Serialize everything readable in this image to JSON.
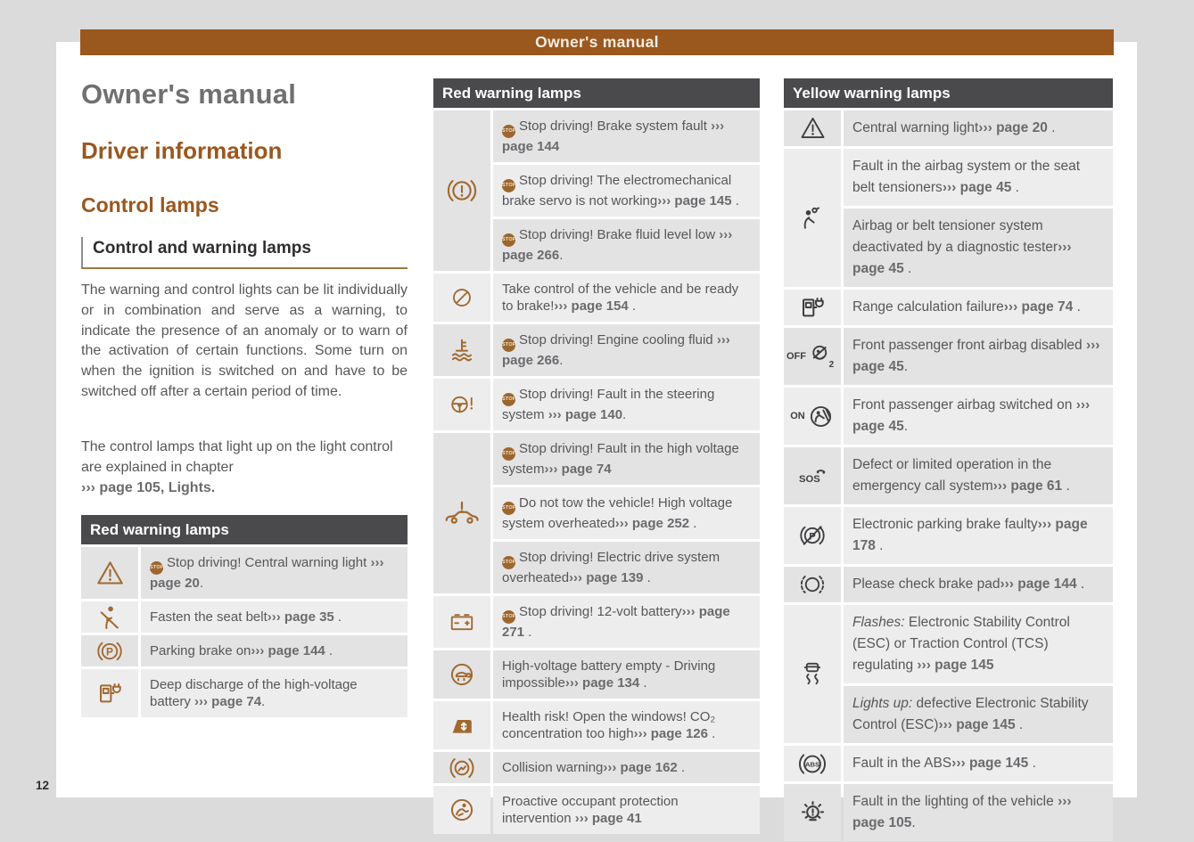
{
  "top_bar": {
    "title": "Owner's manual"
  },
  "page_number": "12",
  "stop_badge_text": "STOP",
  "colors": {
    "background": "#dbdbdc",
    "page": "#ffffff",
    "accent_brown": "#9a571e",
    "bar_text": "#f2ecdf",
    "table_header_bg": "#4a4a4c",
    "table_header_text": "#ffffff",
    "row_dark": "#e3e3e4",
    "row_light": "#ededee",
    "body_text": "#57575a",
    "heading_dark": "#2e2e30",
    "title_grey": "#707072",
    "red_lamp_icon": "#a1692f",
    "yellow_lamp_icon": "#3f3f41",
    "stop_badge_bg": "#9c672f",
    "rule_gold": "#9a7a42",
    "reference_text": "#6b6b6e"
  },
  "left": {
    "title": "Owner's manual",
    "heading1": "Driver information",
    "heading2": "Control lamps",
    "section_heading": "Control and warning lamps",
    "para1": "The warning and control lights can be lit individually or in combination and serve as a warning, to indicate the presence of an anomaly or to warn of the activation of certain functions. Some turn on when the ignition is switched on and have to be switched off after a certain period of time.",
    "para2_text": "The control lamps that light up on the light control are explained in chapter",
    "para2_link": "››› page 105, Lights."
  },
  "tables": [
    {
      "title": "Red warning lamps",
      "icon_color": "#a1692f",
      "rows": [
        {
          "icon": "warning-triangle-icon",
          "stop": true,
          "text": "Stop driving! Central warning light ",
          "link": "››› page 20",
          "suffix": "."
        },
        {
          "icon": "seat-belt-icon",
          "text": "Fasten the seat belt",
          "link": "››› page 35",
          "suffix": " ."
        },
        {
          "icon": "parking-brake-icon",
          "text": "Parking brake on",
          "link": "››› page 144",
          "suffix": " ."
        },
        {
          "icon": "hv-battery-discharge-icon",
          "text": "Deep discharge of the high-voltage battery ",
          "link": "››› page 74",
          "suffix": "."
        }
      ]
    },
    {
      "title": "Red warning lamps",
      "icon_color": "#a1692f",
      "rows": [
        {
          "icon": "brake-system-warning-icon",
          "span": 3,
          "stop": true,
          "text": "Stop driving! Brake system fault ",
          "link": "››› page 144",
          "suffix": ""
        },
        {
          "stop": true,
          "text": "Stop driving! The electromechanical brake servo is not working",
          "link": "››› page 145",
          "suffix": " ."
        },
        {
          "stop": true,
          "text": "Stop driving! Brake fluid level low ",
          "link": "››› page 266",
          "suffix": "."
        },
        {
          "icon": "acc-takeover-icon",
          "text": "Take control of the vehicle and be ready to brake!",
          "link": "››› page 154",
          "suffix": " ."
        },
        {
          "icon": "engine-coolant-icon",
          "stop": true,
          "text": "Stop driving! Engine cooling fluid ",
          "link": "››› page 266",
          "suffix": "."
        },
        {
          "icon": "steering-fault-icon",
          "stop": true,
          "text": "Stop driving! Fault in the steering system ",
          "link": "››› page 140",
          "suffix": "."
        },
        {
          "icon": "hv-system-warning-icon",
          "span": 3,
          "stop": true,
          "text": "Stop driving! Fault in the high voltage system",
          "link": "››› page 74",
          "suffix": ""
        },
        {
          "stop": true,
          "text": "Do not tow the vehicle! High voltage system overheated",
          "link": "››› page 252",
          "suffix": " ."
        },
        {
          "stop": true,
          "text": "Stop driving! Electric drive system overheated",
          "link": "››› page 139",
          "suffix": " ."
        },
        {
          "icon": "battery-12v-icon",
          "stop": true,
          "text": "Stop driving! 12-volt battery",
          "link": "››› page 271",
          "suffix": " ."
        },
        {
          "icon": "turtle-icon",
          "text": "High-voltage battery empty - Driving impossible",
          "link": "››› page 134",
          "suffix": " ."
        },
        {
          "icon": "co2-window-icon",
          "text": "Health risk! Open the windows! CO₂ concentration too high",
          "link": "››› page 126",
          "suffix": " ."
        },
        {
          "icon": "collision-warning-icon",
          "text": "Collision warning",
          "link": "››› page 162",
          "suffix": " ."
        },
        {
          "icon": "occupant-protection-icon",
          "text": "Proactive occupant protection intervention ",
          "link": "››› page 41",
          "suffix": ""
        }
      ]
    },
    {
      "title": "Yellow warning lamps",
      "icon_color": "#3f3f41",
      "rows": [
        {
          "icon": "central-warning-icon",
          "text": "Central warning light",
          "link": "››› page 20",
          "suffix": " ."
        },
        {
          "icon": "airbag-fault-icon",
          "span": 2,
          "text": "Fault in the airbag system or the seat belt tensioners",
          "link": "››› page 45",
          "suffix": " ."
        },
        {
          "text": "Airbag or belt tensioner system deactivated by a diagnostic tester",
          "link": "››› page 45",
          "suffix": " ."
        },
        {
          "icon": "charging-station-icon",
          "text": "Range calculation failure",
          "link": "››› page 74",
          "suffix": " ."
        },
        {
          "icon": "passenger-airbag-off-icon",
          "icon_label": "OFF",
          "text": "Front passenger front airbag disabled ",
          "link": "››› page 45",
          "suffix": "."
        },
        {
          "icon": "passenger-airbag-on-icon",
          "icon_label": "ON",
          "text": "Front passenger airbag switched on ",
          "link": "››› page 45",
          "suffix": "."
        },
        {
          "icon": "sos-icon",
          "text": "Defect or limited operation in the emergency call system",
          "link": "››› page 61",
          "suffix": " ."
        },
        {
          "icon": "parking-brake-fault-icon",
          "text": "Electronic parking brake faulty",
          "link": "››› page 178",
          "suffix": " ."
        },
        {
          "icon": "brake-pad-icon",
          "text": "Please check brake pad",
          "link": "››› page 144",
          "suffix": " ."
        },
        {
          "icon": "esc-icon",
          "span": 2,
          "italic": "Flashes:",
          "text": " Electronic Stability Control (ESC) or Traction Control (TCS) regulating ",
          "link": "››› page 145",
          "suffix": ""
        },
        {
          "italic": "Lights up:",
          "text": " defective Electronic Stability Control (ESC)",
          "link": "››› page 145",
          "suffix": " ."
        },
        {
          "icon": "abs-icon",
          "text": "Fault in the ABS",
          "link": "››› page 145",
          "suffix": " ."
        },
        {
          "icon": "lighting-fault-icon",
          "text": "Fault in the lighting of the vehicle ",
          "link": "››› page 105",
          "suffix": "."
        }
      ]
    }
  ]
}
